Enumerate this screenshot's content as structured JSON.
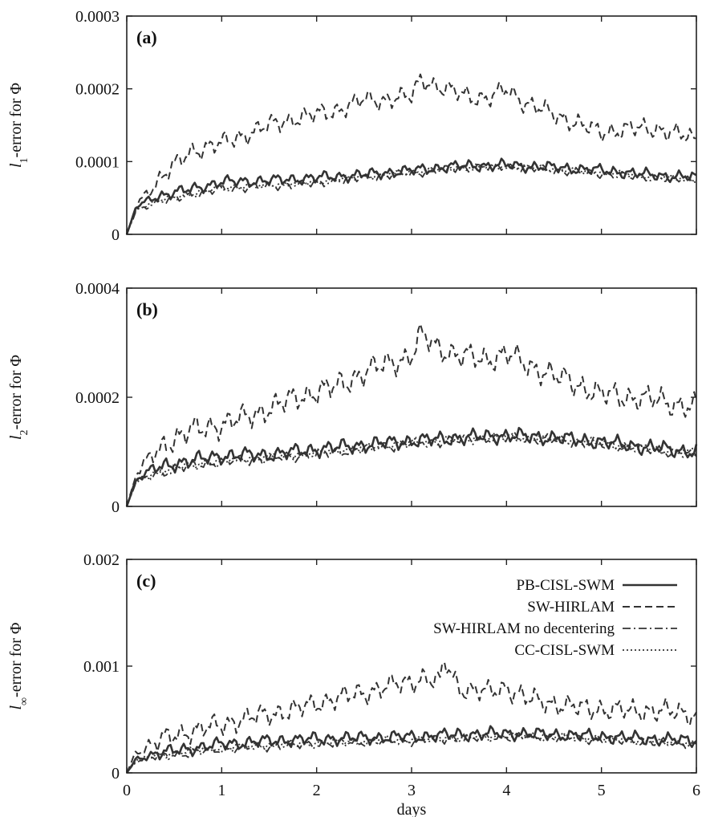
{
  "chart_data": [
    {
      "type": "line",
      "panel_label": "(a)",
      "ylabel": {
        "prefix": "l",
        "sub": "1",
        "suffix": "-error for Φ"
      },
      "xlabel": "",
      "xlim": [
        0,
        6
      ],
      "ylim": [
        0,
        0.0003
      ],
      "xticks": [
        "0",
        "1",
        "2",
        "3",
        "4",
        "5",
        "6"
      ],
      "yticks": [
        "0",
        "0.0001",
        "0.0002",
        "0.0003"
      ],
      "grid": false,
      "series": [
        {
          "style": "solid",
          "x": [
            0,
            0.1,
            0.3,
            0.6,
            1.0,
            1.5,
            2.0,
            2.5,
            3.0,
            3.5,
            4.0,
            4.5,
            5.0,
            5.5,
            6.0
          ],
          "y": [
            0,
            3.8e-05,
            5.2e-05,
            6e-05,
            7.2e-05,
            7.4e-05,
            7.8e-05,
            8.2e-05,
            8.8e-05,
            9.4e-05,
            9.5e-05,
            9.2e-05,
            8.8e-05,
            8.2e-05,
            7.8e-05
          ]
        },
        {
          "style": "dashed",
          "x": [
            0,
            0.1,
            0.3,
            0.5,
            0.7,
            1.0,
            1.2,
            1.5,
            1.8,
            2.0,
            2.2,
            2.5,
            2.7,
            3.0,
            3.1,
            3.3,
            3.5,
            3.8,
            4.0,
            4.2,
            4.5,
            4.8,
            5.0,
            5.3,
            5.6,
            6.0
          ],
          "y": [
            0,
            4e-05,
            7e-05,
            9.5e-05,
            0.000115,
            0.000125,
            0.000135,
            0.00015,
            0.00016,
            0.000165,
            0.00017,
            0.000185,
            0.000185,
            0.00019,
            0.000215,
            0.0002,
            0.000195,
            0.000185,
            0.0002,
            0.00018,
            0.000165,
            0.00015,
            0.00014,
            0.000145,
            0.000145,
            0.00013
          ]
        },
        {
          "style": "dashdot",
          "x": [
            0,
            0.1,
            0.3,
            0.6,
            1.0,
            1.5,
            2.0,
            2.5,
            3.0,
            3.5,
            4.0,
            4.5,
            5.0,
            5.5,
            6.0
          ],
          "y": [
            0,
            3.3e-05,
            4.3e-05,
            5.2e-05,
            6.2e-05,
            6.6e-05,
            7e-05,
            7.8e-05,
            8.4e-05,
            9.1e-05,
            9.3e-05,
            8.8e-05,
            8.3e-05,
            7.8e-05,
            7.4e-05
          ]
        },
        {
          "style": "dotted",
          "x": [
            0,
            0.1,
            0.3,
            0.6,
            1.0,
            1.5,
            2.0,
            2.5,
            3.0,
            3.5,
            4.0,
            4.5,
            5.0,
            5.5,
            6.0
          ],
          "y": [
            0,
            3.4e-05,
            4.5e-05,
            5.4e-05,
            6.4e-05,
            6.8e-05,
            7.2e-05,
            8e-05,
            8.5e-05,
            9.2e-05,
            9.4e-05,
            9e-05,
            8.5e-05,
            8e-05,
            7.6e-05
          ]
        }
      ]
    },
    {
      "type": "line",
      "panel_label": "(b)",
      "ylabel": {
        "prefix": "l",
        "sub": "2",
        "suffix": "-error for Φ"
      },
      "xlabel": "",
      "xlim": [
        0,
        6
      ],
      "ylim": [
        0,
        0.0004
      ],
      "xticks": [
        "0",
        "1",
        "2",
        "3",
        "4",
        "5",
        "6"
      ],
      "yticks": [
        "0",
        "0.0002",
        "0.0004"
      ],
      "grid": false,
      "series": [
        {
          "style": "solid",
          "x": [
            0,
            0.1,
            0.3,
            0.6,
            1.0,
            1.5,
            2.0,
            2.5,
            3.0,
            3.5,
            4.0,
            4.5,
            5.0,
            5.5,
            6.0
          ],
          "y": [
            0,
            5e-05,
            7e-05,
            8.2e-05,
            9.3e-05,
            9.5e-05,
            0.000105,
            0.000113,
            0.00012,
            0.000126,
            0.00013,
            0.000126,
            0.000118,
            0.000108,
            0.0001
          ]
        },
        {
          "style": "dashed",
          "x": [
            0,
            0.1,
            0.3,
            0.5,
            0.7,
            1.0,
            1.2,
            1.5,
            1.8,
            2.0,
            2.2,
            2.5,
            2.7,
            3.0,
            3.1,
            3.3,
            3.5,
            3.8,
            4.0,
            4.2,
            4.5,
            4.8,
            5.0,
            5.3,
            5.6,
            6.0
          ],
          "y": [
            0,
            6e-05,
            0.0001,
            0.000125,
            0.00014,
            0.00015,
            0.00016,
            0.00018,
            0.0002,
            0.00021,
            0.00022,
            0.000245,
            0.00026,
            0.000275,
            0.000315,
            0.00029,
            0.000275,
            0.00027,
            0.00028,
            0.00026,
            0.00024,
            0.00022,
            0.000205,
            0.0002,
            0.000195,
            0.00018
          ]
        },
        {
          "style": "dashdot",
          "x": [
            0,
            0.1,
            0.3,
            0.6,
            1.0,
            1.5,
            2.0,
            2.5,
            3.0,
            3.5,
            4.0,
            4.5,
            5.0,
            5.5,
            6.0
          ],
          "y": [
            0,
            4.5e-05,
            6e-05,
            7.2e-05,
            8.2e-05,
            8.8e-05,
            9.6e-05,
            0.000106,
            0.000115,
            0.000122,
            0.000126,
            0.000122,
            0.000114,
            0.000104,
            9.5e-05
          ]
        },
        {
          "style": "dotted",
          "x": [
            0,
            0.1,
            0.3,
            0.6,
            1.0,
            1.5,
            2.0,
            2.5,
            3.0,
            3.5,
            4.0,
            4.5,
            5.0,
            5.5,
            6.0
          ],
          "y": [
            0,
            4.6e-05,
            6.2e-05,
            7.4e-05,
            8.5e-05,
            9e-05,
            9.9e-05,
            0.000108,
            0.000117,
            0.000124,
            0.000128,
            0.000124,
            0.000116,
            0.000106,
            9.7e-05
          ]
        }
      ]
    },
    {
      "type": "line",
      "panel_label": "(c)",
      "ylabel": {
        "prefix": "l",
        "sub": "∞",
        "suffix": "-error for Φ"
      },
      "xlabel": "days",
      "xlim": [
        0,
        6
      ],
      "ylim": [
        0,
        0.002
      ],
      "xticks": [
        "0",
        "1",
        "2",
        "3",
        "4",
        "5",
        "6"
      ],
      "yticks": [
        "0",
        "0.001",
        "0.002"
      ],
      "grid": false,
      "legend_position": "top-right",
      "series": [
        {
          "name": "PB-CISL-SWM",
          "style": "solid",
          "x": [
            0,
            0.1,
            0.3,
            0.6,
            1.0,
            1.5,
            2.0,
            2.5,
            3.0,
            3.5,
            4.0,
            4.5,
            5.0,
            5.5,
            6.0
          ],
          "y": [
            0,
            0.00013,
            0.00018,
            0.00022,
            0.00027,
            0.0003,
            0.00032,
            0.00033,
            0.00034,
            0.00036,
            0.00037,
            0.00036,
            0.00034,
            0.00032,
            0.0003
          ]
        },
        {
          "name": "SW-HIRLAM",
          "style": "dashed",
          "x": [
            0,
            0.1,
            0.3,
            0.5,
            0.7,
            1.0,
            1.2,
            1.5,
            1.8,
            2.0,
            2.2,
            2.5,
            2.7,
            3.0,
            3.1,
            3.3,
            3.35,
            3.5,
            3.8,
            4.0,
            4.2,
            4.5,
            4.8,
            5.0,
            5.3,
            5.6,
            6.0
          ],
          "y": [
            0,
            0.0002,
            0.00028,
            0.00035,
            0.0004,
            0.00045,
            0.0005,
            0.00055,
            0.0006,
            0.00065,
            0.0007,
            0.00075,
            0.0008,
            0.00085,
            0.0009,
            0.00085,
            0.00105,
            0.0008,
            0.00075,
            0.0008,
            0.0007,
            0.00065,
            0.0006,
            0.0006,
            0.00058,
            0.00058,
            0.00055
          ]
        },
        {
          "name": "SW-HIRLAM no decentering",
          "style": "dashdot",
          "x": [
            0,
            0.1,
            0.3,
            0.6,
            1.0,
            1.5,
            2.0,
            2.5,
            3.0,
            3.5,
            4.0,
            4.5,
            5.0,
            5.5,
            6.0
          ],
          "y": [
            0,
            0.00011,
            0.00015,
            0.00018,
            0.00022,
            0.00025,
            0.00027,
            0.00029,
            0.0003,
            0.00032,
            0.00034,
            0.00033,
            0.00031,
            0.00029,
            0.00027
          ]
        },
        {
          "name": "CC-CISL-SWM",
          "style": "dotted",
          "x": [
            0,
            0.1,
            0.3,
            0.6,
            1.0,
            1.5,
            2.0,
            2.5,
            3.0,
            3.5,
            4.0,
            4.5,
            5.0,
            5.5,
            6.0
          ],
          "y": [
            0,
            0.00012,
            0.00016,
            0.0002,
            0.00024,
            0.00026,
            0.00028,
            0.0003,
            0.00031,
            0.00033,
            0.00035,
            0.00034,
            0.00032,
            0.0003,
            0.00028
          ]
        }
      ]
    }
  ]
}
